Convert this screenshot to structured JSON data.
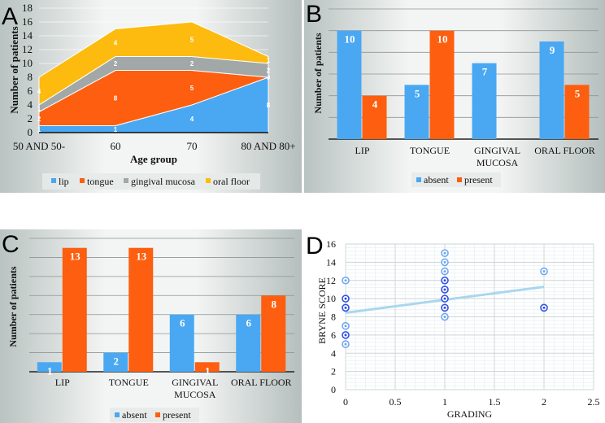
{
  "figure": {
    "colors": {
      "blue": "#4aa8f2",
      "orange": "#fd5e0f",
      "gray": "#a2a7a8",
      "yellow": "#fdbb10",
      "trend": "#a9d7ee",
      "point_light": "#6fa7ef",
      "point_dark": "#2f4fe6"
    }
  },
  "chart_data": [
    {
      "id": "A",
      "panel_label": "A",
      "type": "area",
      "stacked": true,
      "title": "",
      "xlabel": "Age group",
      "ylabel": "Number of patients",
      "ylim": [
        0,
        18
      ],
      "yticks": [
        0,
        2,
        4,
        6,
        8,
        10,
        12,
        14,
        16,
        18
      ],
      "grid": true,
      "legend": "bottom",
      "categories": [
        "50 AND 50-",
        "60",
        "70",
        "80 AND 80+"
      ],
      "series": [
        {
          "name": "lip",
          "color": "#4aa8f2",
          "values": [
            1,
            1,
            4,
            8
          ]
        },
        {
          "name": "tongue",
          "color": "#fd5e0f",
          "values": [
            2,
            8,
            5,
            0
          ]
        },
        {
          "name": "gingival mucosa",
          "color": "#a2a7a8",
          "values": [
            1,
            2,
            2,
            2
          ]
        },
        {
          "name": "oral floor",
          "color": "#fdbb10",
          "values": [
            4,
            4,
            5,
            1
          ]
        }
      ]
    },
    {
      "id": "B",
      "panel_label": "B",
      "type": "bar",
      "title": "",
      "xlabel": "",
      "ylabel": "Number of patients",
      "ylim": [
        0,
        12
      ],
      "grid": true,
      "legend": "bottom",
      "categories": [
        "LIP",
        "TONGUE",
        "GINGIVAL MUCOSA",
        "ORAL FLOOR"
      ],
      "category_lines": [
        [
          "LIP"
        ],
        [
          "TONGUE"
        ],
        [
          "GINGIVAL",
          "MUCOSA"
        ],
        [
          "ORAL FLOOR"
        ]
      ],
      "series": [
        {
          "name": "absent",
          "color": "#4aa8f2",
          "values": [
            10,
            5,
            7,
            9
          ]
        },
        {
          "name": "present",
          "color": "#fd5e0f",
          "values": [
            4,
            10,
            0,
            5
          ]
        }
      ]
    },
    {
      "id": "C",
      "panel_label": "C",
      "type": "bar",
      "title": "",
      "xlabel": "",
      "ylabel": "Number of patients",
      "ylim": [
        0,
        14
      ],
      "grid": true,
      "legend": "bottom",
      "categories": [
        "LIP",
        "TONGUE",
        "GINGIVAL MUCOSA",
        "ORAL FLOOR"
      ],
      "category_lines": [
        [
          "LIP"
        ],
        [
          "TONGUE"
        ],
        [
          "GINGIVAL",
          "MUCOSA"
        ],
        [
          "ORAL FLOOR"
        ]
      ],
      "series": [
        {
          "name": "absent",
          "color": "#4aa8f2",
          "values": [
            1,
            2,
            6,
            6
          ]
        },
        {
          "name": "present",
          "color": "#fd5e0f",
          "values": [
            13,
            13,
            1,
            8
          ]
        }
      ]
    },
    {
      "id": "D",
      "panel_label": "D",
      "type": "scatter",
      "title": "",
      "xlabel": "GRADING",
      "ylabel": "BRYNE SCORE",
      "xlim": [
        0,
        2.5
      ],
      "ylim": [
        0,
        16
      ],
      "xticks": [
        0,
        0.5,
        1,
        1.5,
        2,
        2.5
      ],
      "xtick_labels": [
        "0",
        "0.5",
        "1",
        "1.5",
        "2",
        "2.5"
      ],
      "yticks": [
        0,
        2,
        4,
        6,
        8,
        10,
        12,
        14,
        16
      ],
      "grid": true,
      "legend": "none",
      "points": [
        {
          "x": 0,
          "y": 12,
          "dense": false
        },
        {
          "x": 0,
          "y": 10,
          "dense": true
        },
        {
          "x": 0,
          "y": 9,
          "dense": true
        },
        {
          "x": 0,
          "y": 7,
          "dense": false
        },
        {
          "x": 0,
          "y": 6,
          "dense": true
        },
        {
          "x": 0,
          "y": 5,
          "dense": false
        },
        {
          "x": 1,
          "y": 15,
          "dense": false
        },
        {
          "x": 1,
          "y": 14,
          "dense": false
        },
        {
          "x": 1,
          "y": 13,
          "dense": false
        },
        {
          "x": 1,
          "y": 12,
          "dense": true
        },
        {
          "x": 1,
          "y": 11,
          "dense": true
        },
        {
          "x": 1,
          "y": 10,
          "dense": true
        },
        {
          "x": 1,
          "y": 9,
          "dense": true
        },
        {
          "x": 1,
          "y": 8,
          "dense": false
        },
        {
          "x": 2,
          "y": 13,
          "dense": false
        },
        {
          "x": 2,
          "y": 9,
          "dense": true
        }
      ],
      "trendline": {
        "x0": 0,
        "y0": 8.45,
        "x1": 2,
        "y1": 11.3
      }
    }
  ]
}
